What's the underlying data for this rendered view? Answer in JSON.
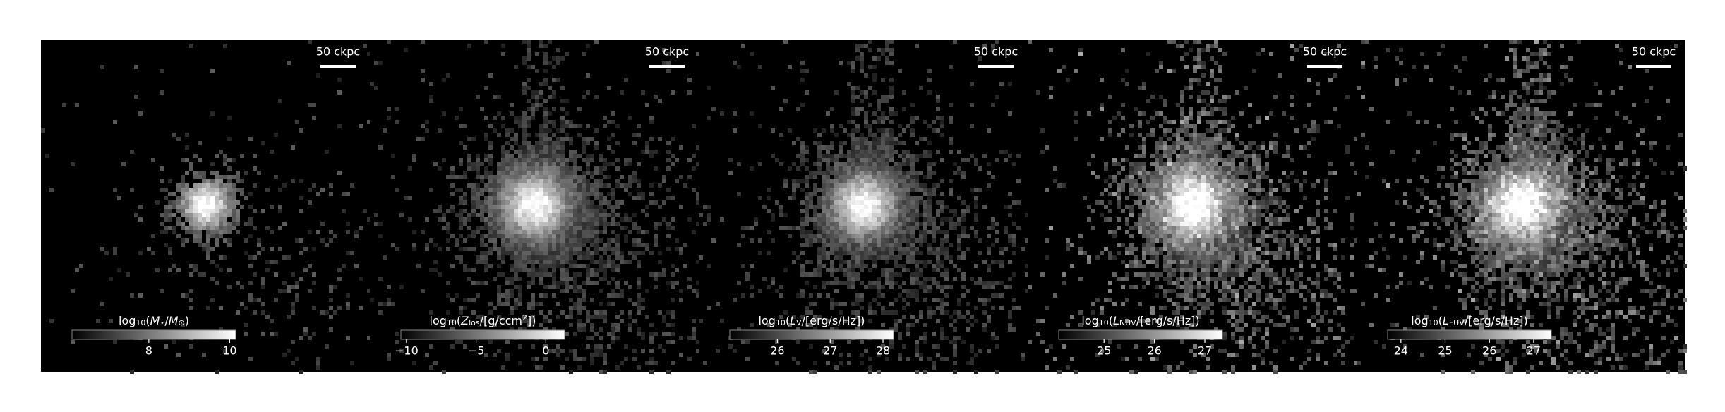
{
  "panels": [
    {
      "scale_label": "50 ckpc",
      "colorbar": {
        "label": [
          {
            "text": "log"
          },
          {
            "text": "10",
            "sub": true
          },
          {
            "text": "("
          },
          {
            "text": "M",
            "italic": true
          },
          {
            "text": "⋆",
            "sub": true
          },
          {
            "text": "/"
          },
          {
            "text": "M",
            "italic": true
          },
          {
            "text": "⊙",
            "sub": true
          },
          {
            "text": ")"
          }
        ],
        "lim": [
          6.1,
          10.15
        ],
        "ticks": [
          8,
          10
        ]
      }
    },
    {
      "scale_label": "50 ckpc",
      "colorbar": {
        "label": [
          {
            "text": "log"
          },
          {
            "text": "10",
            "sub": true
          },
          {
            "text": "("
          },
          {
            "text": "Z",
            "italic": true
          },
          {
            "text": "los",
            "sub": true
          },
          {
            "text": "/[g/ccm"
          },
          {
            "text": "2",
            "sup": true
          },
          {
            "text": "])"
          }
        ],
        "lim": [
          -10.4,
          1.35
        ],
        "ticks": [
          {
            "value": -10,
            "label": "−10"
          },
          {
            "value": -5,
            "label": "−5"
          },
          0
        ]
      }
    },
    {
      "scale_label": "50 ckpc",
      "colorbar": {
        "label": [
          {
            "text": "log"
          },
          {
            "text": "10",
            "sub": true
          },
          {
            "text": "("
          },
          {
            "text": "L",
            "italic": true
          },
          {
            "text": "V",
            "sub": true
          },
          {
            "text": "/[erg/s/Hz])"
          }
        ],
        "lim": [
          25.1,
          28.2
        ],
        "ticks": [
          26,
          27,
          28
        ]
      }
    },
    {
      "scale_label": "50 ckpc",
      "colorbar": {
        "label": [
          {
            "text": "log"
          },
          {
            "text": "10",
            "sub": true
          },
          {
            "text": "("
          },
          {
            "text": "L",
            "italic": true
          },
          {
            "text": "NUV",
            "sub": true
          },
          {
            "text": "/[erg/s/Hz])"
          }
        ],
        "lim": [
          24.1,
          27.35
        ],
        "ticks": [
          25,
          26,
          27
        ]
      }
    },
    {
      "scale_label": "50 ckpc",
      "colorbar": {
        "label": [
          {
            "text": "log"
          },
          {
            "text": "10",
            "sub": true
          },
          {
            "text": "("
          },
          {
            "text": "L",
            "italic": true
          },
          {
            "text": "FUV",
            "sub": true
          },
          {
            "text": "/[erg/s/Hz])"
          }
        ],
        "lim": [
          23.7,
          27.4
        ],
        "ticks": [
          24,
          25,
          26,
          27
        ]
      }
    }
  ]
}
